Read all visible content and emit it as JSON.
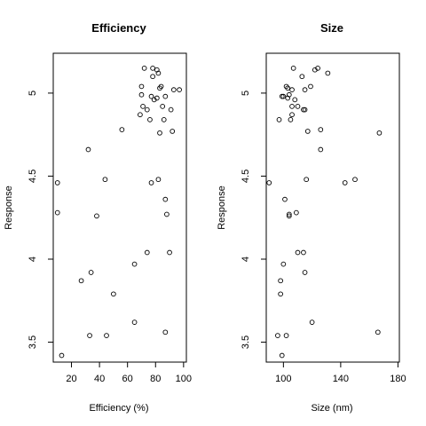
{
  "chart_data": [
    {
      "type": "scatter",
      "title": "Efficiency",
      "xlabel": "Efficiency (%)",
      "ylabel": "Response",
      "xlim": [
        7,
        102
      ],
      "ylim": [
        3.38,
        5.24
      ],
      "xticks": [
        20,
        40,
        60,
        80,
        100
      ],
      "yticks": [
        3.5,
        4.0,
        4.5,
        5.0
      ],
      "grid": false,
      "series": [
        {
          "marker": "open-circle",
          "x": [
            72,
            78,
            81,
            82,
            78,
            70,
            84,
            83,
            97,
            93,
            70,
            87,
            77,
            81,
            79,
            71,
            85,
            74,
            91,
            69,
            76,
            86,
            56,
            92,
            83,
            32,
            44,
            82,
            77,
            10,
            87,
            10,
            88,
            38,
            74,
            90,
            65,
            34,
            27,
            50,
            65,
            87,
            45,
            33,
            13
          ],
          "y": [
            5.15,
            5.15,
            5.14,
            5.12,
            5.1,
            5.04,
            5.04,
            5.03,
            5.02,
            5.02,
            4.99,
            4.98,
            4.98,
            4.97,
            4.96,
            4.92,
            4.92,
            4.9,
            4.9,
            4.87,
            4.84,
            4.84,
            4.78,
            4.77,
            4.76,
            4.66,
            4.48,
            4.48,
            4.46,
            4.46,
            4.36,
            4.28,
            4.27,
            4.26,
            4.04,
            4.04,
            3.97,
            3.92,
            3.87,
            3.79,
            3.62,
            3.56,
            3.54,
            3.54,
            3.42
          ]
        }
      ]
    },
    {
      "type": "scatter",
      "title": "Size",
      "xlabel": "Size (nm)",
      "ylabel": "Response",
      "xlim": [
        88,
        181
      ],
      "ylim": [
        3.38,
        5.24
      ],
      "xticks": [
        100,
        140,
        180
      ],
      "yticks": [
        3.5,
        4.0,
        4.5,
        5.0
      ],
      "grid": false,
      "series": [
        {
          "marker": "open-circle",
          "x": [
            107,
            124,
            122,
            131,
            113,
            119,
            102,
            103,
            115,
            106,
            104,
            99,
            100,
            103,
            108,
            110,
            106,
            115,
            114,
            106,
            105,
            97,
            126,
            117,
            167,
            126,
            116,
            150,
            90,
            143,
            101,
            109,
            104,
            104,
            114,
            110,
            100,
            115,
            98,
            98,
            120,
            166,
            102,
            96,
            99
          ],
          "y": [
            5.15,
            5.15,
            5.14,
            5.12,
            5.1,
            5.04,
            5.04,
            5.03,
            5.02,
            5.02,
            4.99,
            4.98,
            4.98,
            4.97,
            4.96,
            4.92,
            4.92,
            4.9,
            4.9,
            4.87,
            4.84,
            4.84,
            4.78,
            4.77,
            4.76,
            4.66,
            4.48,
            4.48,
            4.46,
            4.46,
            4.36,
            4.28,
            4.27,
            4.26,
            4.04,
            4.04,
            3.97,
            3.92,
            3.87,
            3.79,
            3.62,
            3.56,
            3.54,
            3.54,
            3.42
          ]
        }
      ]
    }
  ]
}
